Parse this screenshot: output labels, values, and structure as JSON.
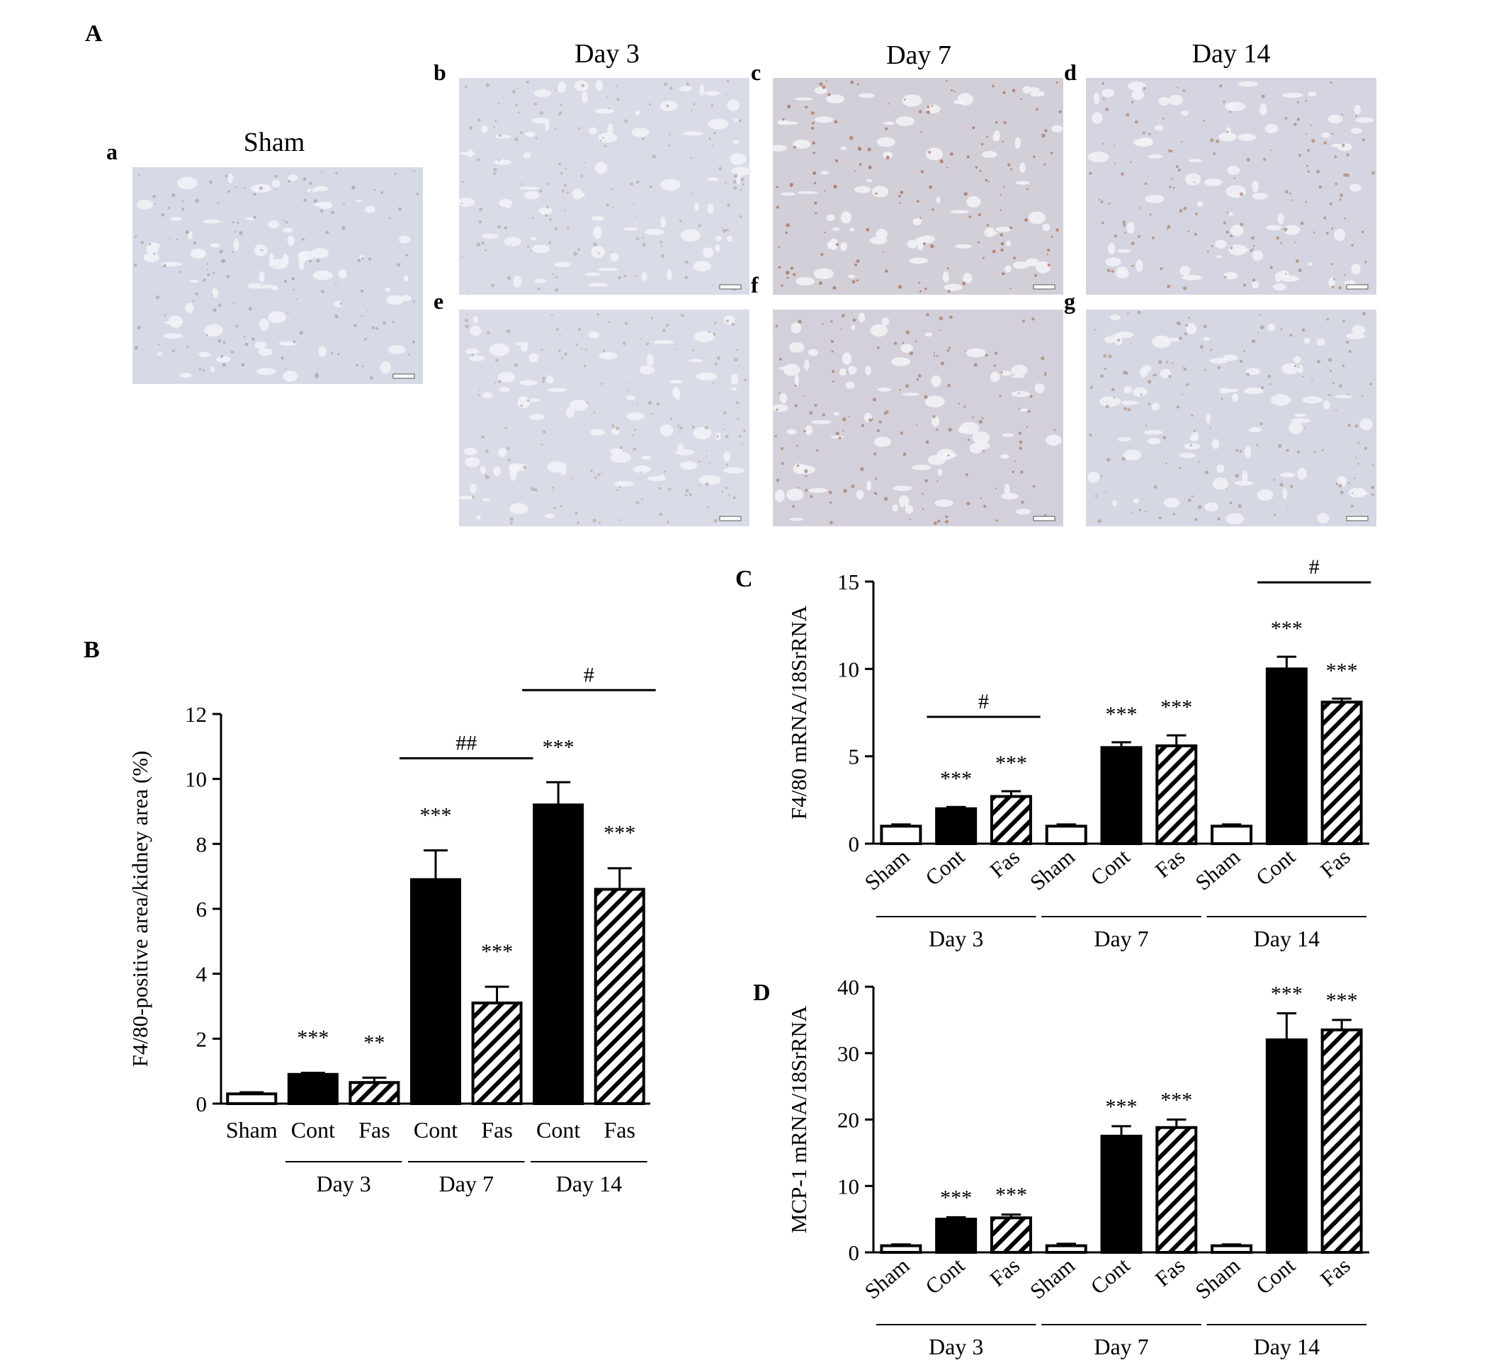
{
  "panels": {
    "A": {
      "letter": "A",
      "column_titles": {
        "sham": "Sham",
        "day3": "Day 3",
        "day7": "Day 7",
        "day14": "Day 14"
      },
      "micrographs": [
        {
          "id": "a",
          "tint": "#d5dae6",
          "stain": "#a9a0a4"
        },
        {
          "id": "b",
          "tint": "#d9dce7",
          "stain": "#b7aaa8"
        },
        {
          "id": "c",
          "tint": "#d3cfd9",
          "stain": "#a86b4e"
        },
        {
          "id": "d",
          "tint": "#d4d5e0",
          "stain": "#ad8570"
        },
        {
          "id": "e",
          "tint": "#d9dce7",
          "stain": "#b8aaa5"
        },
        {
          "id": "f",
          "tint": "#d3d0db",
          "stain": "#a77a62"
        },
        {
          "id": "g",
          "tint": "#d5d8e3",
          "stain": "#b1968b"
        }
      ]
    },
    "B": {
      "letter": "B"
    },
    "C": {
      "letter": "C"
    },
    "D": {
      "letter": "D"
    }
  },
  "chart_data": [
    {
      "panel": "B",
      "type": "bar",
      "ylabel": "F4/80-positive area/kidney area (%)",
      "ylim": [
        0,
        12
      ],
      "yticks": [
        0,
        2,
        4,
        6,
        8,
        10,
        12
      ],
      "categories": [
        "Sham",
        "Cont",
        "Fas",
        "Cont",
        "Fas",
        "Cont",
        "Fas"
      ],
      "fills": [
        "white",
        "black",
        "hatch",
        "black",
        "hatch",
        "black",
        "hatch"
      ],
      "values": [
        0.3,
        0.9,
        0.65,
        6.9,
        3.1,
        9.2,
        6.6
      ],
      "errors": [
        0.05,
        0.05,
        0.15,
        0.9,
        0.5,
        0.7,
        0.65
      ],
      "annotations": [
        "",
        "***",
        "**",
        "***",
        "***",
        "***",
        "***"
      ],
      "groups": [
        {
          "label": "Day 3",
          "from": 1,
          "to": 2
        },
        {
          "label": "Day 7",
          "from": 3,
          "to": 4
        },
        {
          "label": "Day 14",
          "from": 5,
          "to": 6
        }
      ],
      "brackets": [
        {
          "label": "##",
          "from": 3,
          "to": 4
        },
        {
          "label": "#",
          "from": 5,
          "to": 6
        }
      ],
      "grid": false
    },
    {
      "panel": "C",
      "type": "bar",
      "ylabel": "F4/80 mRNA/18SrRNA",
      "ylim": [
        0,
        15
      ],
      "yticks": [
        0,
        5,
        10,
        15
      ],
      "categories": [
        "Sham",
        "Cont",
        "Fas",
        "Sham",
        "Cont",
        "Fas",
        "Sham",
        "Cont",
        "Fas"
      ],
      "fills": [
        "white",
        "black",
        "hatch",
        "white",
        "black",
        "hatch",
        "white",
        "black",
        "hatch"
      ],
      "values": [
        1.0,
        2.0,
        2.7,
        1.0,
        5.5,
        5.6,
        1.0,
        10.0,
        8.1
      ],
      "errors": [
        0.1,
        0.1,
        0.3,
        0.1,
        0.3,
        0.6,
        0.1,
        0.7,
        0.2
      ],
      "annotations": [
        "",
        "***",
        "***",
        "",
        "***",
        "***",
        "",
        "***",
        "***"
      ],
      "groups": [
        {
          "label": "Day 3",
          "from": 0,
          "to": 2
        },
        {
          "label": "Day 7",
          "from": 3,
          "to": 5
        },
        {
          "label": "Day 14",
          "from": 6,
          "to": 8
        }
      ],
      "brackets": [
        {
          "label": "#",
          "from": 1,
          "to": 2
        },
        {
          "label": "#",
          "from": 7,
          "to": 8
        }
      ],
      "grid": false
    },
    {
      "panel": "D",
      "type": "bar",
      "ylabel": "MCP-1 mRNA/18SrRNA",
      "ylim": [
        0,
        40
      ],
      "yticks": [
        0,
        10,
        20,
        30,
        40
      ],
      "categories": [
        "Sham",
        "Cont",
        "Fas",
        "Sham",
        "Cont",
        "Fas",
        "Sham",
        "Cont",
        "Fas"
      ],
      "fills": [
        "white",
        "black",
        "hatch",
        "white",
        "black",
        "hatch",
        "white",
        "black",
        "hatch"
      ],
      "values": [
        1.0,
        5.0,
        5.2,
        1.0,
        17.5,
        18.8,
        1.0,
        32.0,
        33.5
      ],
      "errors": [
        0.2,
        0.3,
        0.5,
        0.3,
        1.5,
        1.2,
        0.2,
        4.0,
        1.5
      ],
      "annotations": [
        "",
        "***",
        "***",
        "",
        "***",
        "***",
        "",
        "***",
        "***"
      ],
      "groups": [
        {
          "label": "Day 3",
          "from": 0,
          "to": 2
        },
        {
          "label": "Day 7",
          "from": 3,
          "to": 5
        },
        {
          "label": "Day 14",
          "from": 6,
          "to": 8
        }
      ],
      "brackets": [],
      "grid": false
    }
  ]
}
